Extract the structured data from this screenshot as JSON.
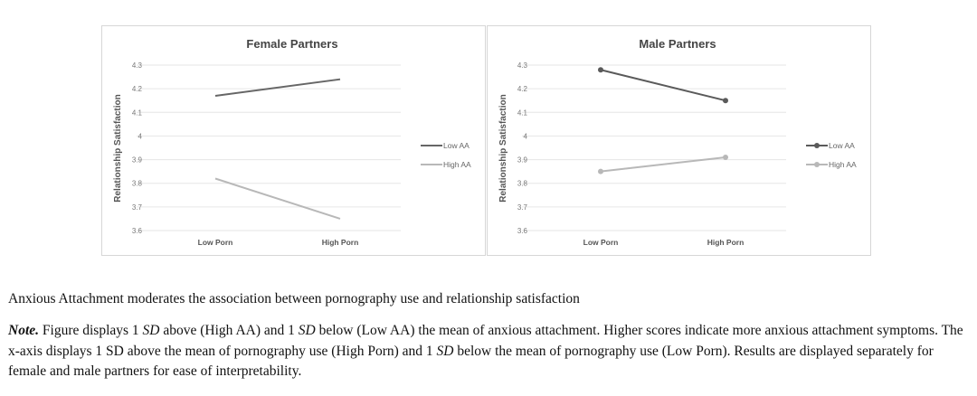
{
  "chart_data": [
    {
      "type": "line",
      "title": "Female Partners",
      "ylabel": "Relationship Satisfaction",
      "categories": [
        "Low Porn",
        "High Porn"
      ],
      "y_ticks": [
        "4.3",
        "4.2",
        "4.1",
        "4",
        "3.9",
        "3.8",
        "3.7",
        "3.6"
      ],
      "ylim": [
        3.6,
        4.3
      ],
      "grid": true,
      "legend": "right",
      "markers": false,
      "series": [
        {
          "name": "Low AA",
          "values": [
            4.17,
            4.24
          ],
          "color": "#666666"
        },
        {
          "name": "High AA",
          "values": [
            3.82,
            3.65
          ],
          "color": "#b8b8b8"
        }
      ]
    },
    {
      "type": "line",
      "title": "Male Partners",
      "ylabel": "Relationship Satisfaction",
      "categories": [
        "Low Porn",
        "High Porn"
      ],
      "y_ticks": [
        "4.3",
        "4.2",
        "4.1",
        "4",
        "3.9",
        "3.8",
        "3.7",
        "3.6"
      ],
      "ylim": [
        3.6,
        4.3
      ],
      "grid": true,
      "legend": "right",
      "markers": true,
      "series": [
        {
          "name": "Low AA",
          "values": [
            4.28,
            4.15
          ],
          "color": "#5a5a5a"
        },
        {
          "name": "High AA",
          "values": [
            3.85,
            3.91
          ],
          "color": "#b8b8b8"
        }
      ]
    }
  ],
  "caption": {
    "title": "Anxious Attachment moderates the association between pornography use and relationship satisfaction",
    "note_label": "Note.",
    "note_parts": [
      " Figure displays 1 ",
      "SD",
      " above (High AA) and 1 ",
      "SD",
      " below (Low AA) the mean of anxious attachment. Higher scores indicate more anxious attachment symptoms. The x-axis displays 1 SD above the mean of pornography use (High Porn) and 1 ",
      "SD",
      " below the mean of pornography use (Low Porn). Results are displayed separately for female and male partners for ease of interpretability."
    ]
  }
}
